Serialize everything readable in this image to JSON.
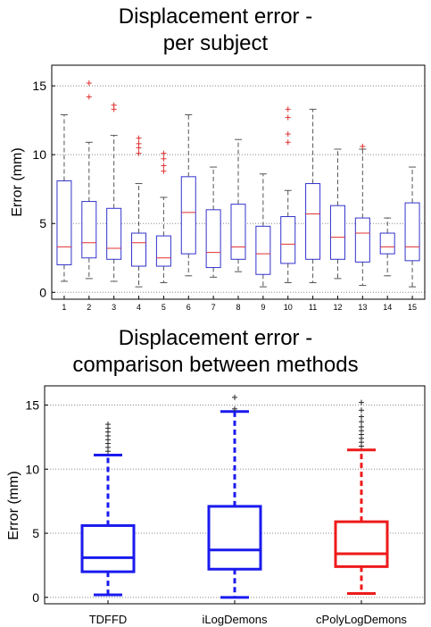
{
  "chart_data": [
    {
      "type": "box",
      "title": [
        "Displacement error -",
        "per subject"
      ],
      "xlabel": "",
      "ylabel": "Error (mm)",
      "ylim": [
        -0.5,
        16.5
      ],
      "yticks": [
        0,
        5,
        10,
        15
      ],
      "grid": true,
      "colors": {
        "box": "#3333cc",
        "median": "#e03030",
        "whisker": "#555555",
        "outlier": "#e03030"
      },
      "categories": [
        "1",
        "2",
        "3",
        "4",
        "5",
        "6",
        "7",
        "8",
        "9",
        "10",
        "11",
        "12",
        "13",
        "14",
        "15"
      ],
      "boxes": [
        {
          "low": 0.8,
          "q1": 2.0,
          "median": 3.3,
          "q3": 8.1,
          "high": 12.9,
          "outliers": []
        },
        {
          "low": 1.0,
          "q1": 2.5,
          "median": 3.6,
          "q3": 6.6,
          "high": 10.9,
          "outliers": [
            15.2,
            14.2
          ]
        },
        {
          "low": 0.8,
          "q1": 2.4,
          "median": 3.2,
          "q3": 6.1,
          "high": 11.4,
          "outliers": [
            13.6,
            13.3
          ]
        },
        {
          "low": 0.4,
          "q1": 1.9,
          "median": 3.6,
          "q3": 4.3,
          "high": 7.9,
          "outliers": [
            11.2,
            10.8,
            10.5,
            10.1
          ]
        },
        {
          "low": 0.7,
          "q1": 1.9,
          "median": 2.5,
          "q3": 4.1,
          "high": 6.9,
          "outliers": [
            10.1,
            9.7,
            9.2,
            8.8
          ]
        },
        {
          "low": 1.2,
          "q1": 2.8,
          "median": 5.8,
          "q3": 8.4,
          "high": 12.9,
          "outliers": []
        },
        {
          "low": 1.1,
          "q1": 1.8,
          "median": 2.9,
          "q3": 6.0,
          "high": 9.1,
          "outliers": []
        },
        {
          "low": 1.5,
          "q1": 2.4,
          "median": 3.3,
          "q3": 6.4,
          "high": 11.1,
          "outliers": []
        },
        {
          "low": 0.4,
          "q1": 1.3,
          "median": 2.8,
          "q3": 4.8,
          "high": 8.6,
          "outliers": []
        },
        {
          "low": 0.7,
          "q1": 2.1,
          "median": 3.5,
          "q3": 5.5,
          "high": 7.4,
          "outliers": [
            13.3,
            12.7,
            11.5,
            10.9
          ]
        },
        {
          "low": 0.7,
          "q1": 2.4,
          "median": 5.7,
          "q3": 7.9,
          "high": 13.3,
          "outliers": []
        },
        {
          "low": 1.0,
          "q1": 2.4,
          "median": 4.0,
          "q3": 6.3,
          "high": 10.4,
          "outliers": []
        },
        {
          "low": 0.5,
          "q1": 2.2,
          "median": 4.3,
          "q3": 5.4,
          "high": 10.4,
          "outliers": [
            10.6
          ]
        },
        {
          "low": 1.2,
          "q1": 2.8,
          "median": 3.3,
          "q3": 4.3,
          "high": 5.4,
          "outliers": []
        },
        {
          "low": 0.4,
          "q1": 2.3,
          "median": 3.3,
          "q3": 6.5,
          "high": 9.1,
          "outliers": []
        }
      ]
    },
    {
      "type": "box",
      "title": [
        "Displacement error -",
        "comparison between methods"
      ],
      "xlabel": "",
      "ylabel": "Error (mm)",
      "ylim": [
        -0.5,
        16.5
      ],
      "yticks": [
        0,
        5,
        10,
        15
      ],
      "grid": true,
      "categories": [
        "TDFFD",
        "iLogDemons",
        "cPolyLogDemons"
      ],
      "boxes": [
        {
          "color": "#1a1aee",
          "low": 0.2,
          "q1": 2.0,
          "median": 3.1,
          "q3": 5.6,
          "high": 11.1,
          "outliers": [
            11.4,
            11.7,
            12.0,
            12.3,
            12.6,
            12.9,
            13.2,
            13.5
          ]
        },
        {
          "color": "#1a1aee",
          "low": 0.0,
          "q1": 2.2,
          "median": 3.7,
          "q3": 7.1,
          "high": 14.5,
          "outliers": [
            14.7,
            15.6
          ]
        },
        {
          "color": "#ee1a1a",
          "low": 0.3,
          "q1": 2.4,
          "median": 3.4,
          "q3": 5.9,
          "high": 11.5,
          "outliers": [
            11.8,
            12.1,
            12.4,
            12.7,
            13.0,
            13.3,
            13.7,
            14.1,
            14.6,
            15.2
          ]
        }
      ]
    }
  ]
}
